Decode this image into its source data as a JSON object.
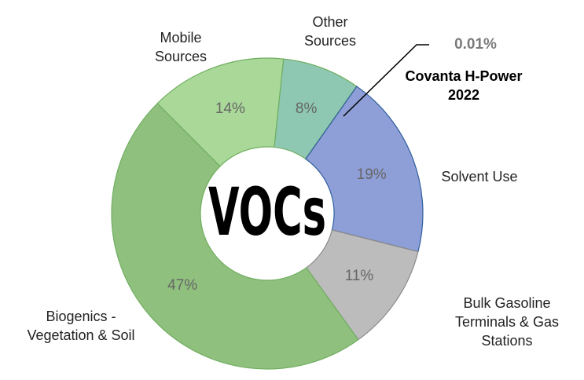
{
  "chart_data": {
    "type": "donut",
    "center_label": "VOCs",
    "categories": [
      "Other Sources",
      "Covanta H-Power 2022",
      "Solvent Use",
      "Bulk Gasoline Terminals & Gas Stations",
      "Biogenics - Vegetation & Soil",
      "Mobile Sources"
    ],
    "values": [
      8,
      0.01,
      19,
      11,
      47,
      14
    ],
    "value_labels": [
      "8%",
      "0.01%",
      "19%",
      "11%",
      "47%",
      "14%"
    ],
    "colors": [
      "#8ec8b2",
      "#2f5f9e",
      "#8e9ed6",
      "#bcbcbc",
      "#90c07e",
      "#a9d898"
    ]
  }
}
